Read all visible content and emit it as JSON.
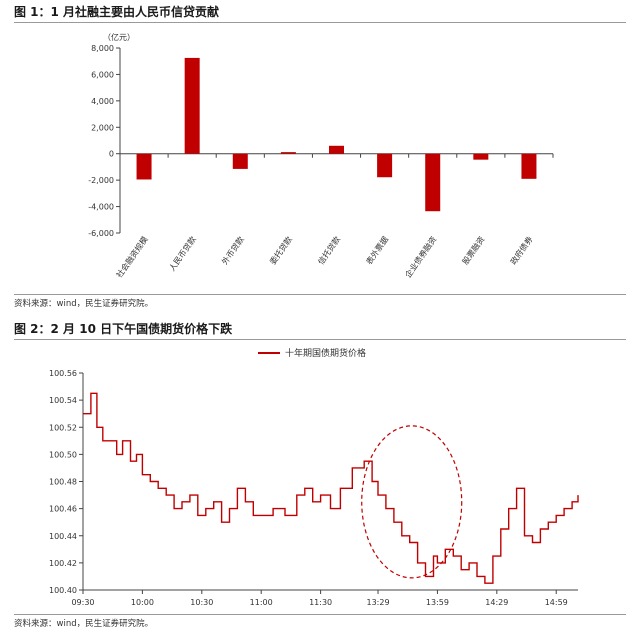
{
  "figure1": {
    "title": "图 1：1 月社融主要由人民币信贷贡献",
    "source": "资料来源：wind，民生证券研究院。"
  },
  "figure2": {
    "title": "图 2：2 月 10 日下午国债期货价格下跌",
    "source": "资料来源：wind，民生证券研究院。"
  },
  "colors": {
    "series": "#c00000",
    "axis": "#444444",
    "annotation": "#c00000"
  },
  "chart_data": [
    {
      "type": "bar",
      "title": "",
      "unit_label": "（亿元）",
      "categories": [
        "社会融资规模",
        "人民币贷款",
        "外币贷款",
        "委托贷款",
        "信托贷款",
        "表外票据",
        "企业债券融资",
        "股票融资",
        "政府债券"
      ],
      "values": [
        -1950,
        7250,
        -1150,
        120,
        600,
        -1780,
        -4350,
        -450,
        -1900
      ],
      "ylim": [
        -6000,
        8000
      ],
      "yticks": [
        -6000,
        -4000,
        -2000,
        0,
        2000,
        4000,
        6000,
        8000
      ],
      "ytick_labels": [
        "-6,000",
        "-4,000",
        "-2,000",
        "0",
        "2,000",
        "4,000",
        "6,000",
        "8,000"
      ],
      "grid": false,
      "legend": "none"
    },
    {
      "type": "line",
      "title": "",
      "legend": "top-center",
      "series": [
        {
          "name": "十年期国债期货价格",
          "x": [
            "09:30",
            "09:34",
            "09:37",
            "09:40",
            "09:43",
            "09:47",
            "09:50",
            "09:54",
            "09:57",
            "10:00",
            "10:04",
            "10:08",
            "10:12",
            "10:16",
            "10:20",
            "10:24",
            "10:28",
            "10:32",
            "10:36",
            "10:40",
            "10:44",
            "10:48",
            "10:52",
            "10:56",
            "11:00",
            "11:06",
            "11:12",
            "11:18",
            "11:22",
            "11:26",
            "11:30",
            "13:05",
            "13:10",
            "13:16",
            "13:22",
            "13:26",
            "13:29",
            "13:33",
            "13:37",
            "13:41",
            "13:45",
            "13:49",
            "13:53",
            "13:57",
            "13:59",
            "14:03",
            "14:07",
            "14:11",
            "14:15",
            "14:19",
            "14:23",
            "14:27",
            "14:31",
            "14:35",
            "14:39",
            "14:43",
            "14:47",
            "14:51",
            "14:55",
            "14:59",
            "15:03",
            "15:07",
            "15:10"
          ],
          "values": [
            100.53,
            100.545,
            100.52,
            100.51,
            100.51,
            100.5,
            100.51,
            100.495,
            100.5,
            100.485,
            100.48,
            100.475,
            100.47,
            100.46,
            100.465,
            100.47,
            100.455,
            100.46,
            100.465,
            100.45,
            100.46,
            100.475,
            100.465,
            100.455,
            100.455,
            100.46,
            100.455,
            100.47,
            100.475,
            100.465,
            100.47,
            100.46,
            100.475,
            100.49,
            100.495,
            100.48,
            100.47,
            100.46,
            100.45,
            100.44,
            100.435,
            100.42,
            100.41,
            100.425,
            100.42,
            100.43,
            100.425,
            100.415,
            100.42,
            100.41,
            100.405,
            100.425,
            100.445,
            100.46,
            100.475,
            100.44,
            100.435,
            100.445,
            100.45,
            100.455,
            100.46,
            100.465,
            100.47
          ]
        }
      ],
      "x_ticks": [
        "09:30",
        "10:00",
        "10:30",
        "11:00",
        "11:30",
        "13:29",
        "13:59",
        "14:29",
        "14:59"
      ],
      "ylim": [
        100.4,
        100.56
      ],
      "yticks": [
        100.4,
        100.42,
        100.44,
        100.46,
        100.48,
        100.5,
        100.52,
        100.54,
        100.56
      ],
      "grid": false,
      "annotation": "dashed ellipse around 13:29–13:59 decline"
    }
  ]
}
